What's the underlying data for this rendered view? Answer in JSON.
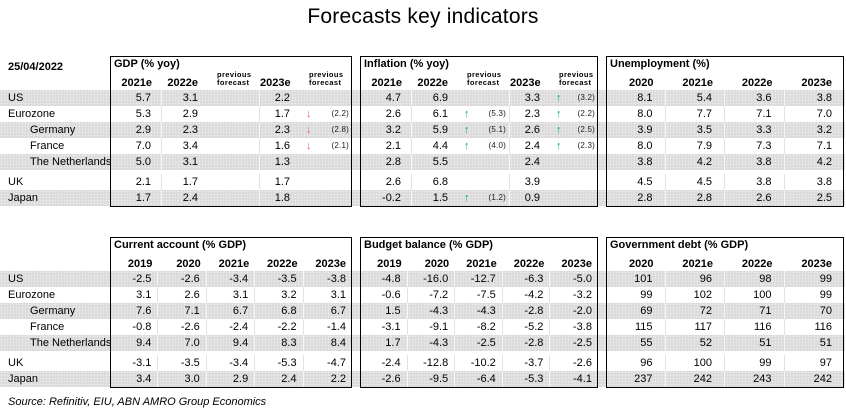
{
  "title": "Forecasts key indicators",
  "date": "25/04/2022",
  "source": "Source: Refinitiv, EIU, ABN AMRO Group Economics",
  "icons": {
    "up": "↑",
    "down": "↓"
  },
  "colors": {
    "up_arrow": "#00a39b",
    "down_arrow": "#e8625a",
    "stripe": "#dbdbdb"
  },
  "countries": [
    {
      "label": "US",
      "indent": false
    },
    {
      "label": "Eurozone",
      "indent": false
    },
    {
      "label": "Germany",
      "indent": true
    },
    {
      "label": "France",
      "indent": true
    },
    {
      "label": "The Netherlands",
      "indent": true
    },
    {
      "label": "UK",
      "indent": false
    },
    {
      "label": "Japan",
      "indent": false
    }
  ],
  "groups": [
    {
      "panels": [
        "gdp",
        "inflation",
        "unemployment"
      ]
    },
    {
      "panels": [
        "current_account",
        "budget_balance",
        "government_debt"
      ]
    }
  ],
  "panels": {
    "gdp": {
      "title": "GDP (% yoy)",
      "layout": "cols-5f",
      "columns": [
        "2021e",
        "2022e",
        "previous forecast",
        "2023e",
        "previous forecast"
      ],
      "rows": [
        [
          "5.7",
          "3.1",
          null,
          "2.2",
          null
        ],
        [
          "5.3",
          "2.9",
          null,
          "1.7",
          {
            "arrow": "down",
            "v": "(2.2)"
          }
        ],
        [
          "2.9",
          "2.3",
          null,
          "2.3",
          {
            "arrow": "down",
            "v": "(2.8)"
          }
        ],
        [
          "7.0",
          "3.4",
          null,
          "1.6",
          {
            "arrow": "down",
            "v": "(2.1)"
          }
        ],
        [
          "5.0",
          "3.1",
          null,
          "1.3",
          null
        ],
        [
          "2.1",
          "1.7",
          null,
          "1.7",
          null
        ],
        [
          "1.7",
          "2.4",
          null,
          "1.8",
          null
        ]
      ]
    },
    "inflation": {
      "title": "Inflation (% yoy)",
      "layout": "cols-5f",
      "columns": [
        "2021e",
        "2022e",
        "previous forecast",
        "2023e",
        "previous forecast"
      ],
      "rows": [
        [
          "4.7",
          "6.9",
          null,
          "3.3",
          {
            "arrow": "up",
            "v": "(3.2)"
          }
        ],
        [
          "2.6",
          "6.1",
          {
            "arrow": "up",
            "v": "(5.3)"
          },
          "2.3",
          {
            "arrow": "up",
            "v": "(2.2)"
          }
        ],
        [
          "3.2",
          "5.9",
          {
            "arrow": "up",
            "v": "(5.1)"
          },
          "2.6",
          {
            "arrow": "up",
            "v": "(2.5)"
          }
        ],
        [
          "2.1",
          "4.4",
          {
            "arrow": "up",
            "v": "(4.0)"
          },
          "2.4",
          {
            "arrow": "up",
            "v": "(2.3)"
          }
        ],
        [
          "2.8",
          "5.5",
          null,
          "2.4",
          null
        ],
        [
          "2.6",
          "6.8",
          null,
          "3.9",
          null
        ],
        [
          "-0.2",
          "1.5",
          {
            "arrow": "up",
            "v": "(1.2)"
          },
          "0.9",
          null
        ]
      ]
    },
    "unemployment": {
      "title": "Unemployment (%)",
      "layout": "cols-4",
      "columns": [
        "2020",
        "2021e",
        "2022e",
        "2023e"
      ],
      "rows": [
        [
          "8.1",
          "5.4",
          "3.6",
          "3.8"
        ],
        [
          "8.0",
          "7.7",
          "7.1",
          "7.0"
        ],
        [
          "3.9",
          "3.5",
          "3.3",
          "3.2"
        ],
        [
          "8.0",
          "7.9",
          "7.3",
          "7.1"
        ],
        [
          "3.8",
          "4.2",
          "3.8",
          "4.2"
        ],
        [
          "4.5",
          "4.5",
          "3.8",
          "3.8"
        ],
        [
          "2.8",
          "2.8",
          "2.6",
          "2.5"
        ]
      ]
    },
    "current_account": {
      "title": "Current account (% GDP)",
      "layout": "cols-5",
      "columns": [
        "2019",
        "2020",
        "2021e",
        "2022e",
        "2023e"
      ],
      "rows": [
        [
          "-2.5",
          "-2.6",
          "-3.4",
          "-3.5",
          "-3.8"
        ],
        [
          "3.1",
          "2.6",
          "3.1",
          "3.2",
          "3.1"
        ],
        [
          "7.6",
          "7.1",
          "6.7",
          "6.8",
          "6.7"
        ],
        [
          "-0.8",
          "-2.6",
          "-2.4",
          "-2.2",
          "-1.4"
        ],
        [
          "9.4",
          "7.0",
          "9.4",
          "8.3",
          "8.4"
        ],
        [
          "-3.1",
          "-3.5",
          "-3.4",
          "-5.3",
          "-4.7"
        ],
        [
          "3.4",
          "3.0",
          "2.9",
          "2.4",
          "2.2"
        ]
      ]
    },
    "budget_balance": {
      "title": "Budget balance (% GDP)",
      "layout": "cols-5",
      "columns": [
        "2019",
        "2020",
        "2021e",
        "2022e",
        "2023e"
      ],
      "rows": [
        [
          "-4.8",
          "-16.0",
          "-12.7",
          "-6.3",
          "-5.0"
        ],
        [
          "-0.6",
          "-7.2",
          "-7.5",
          "-4.2",
          "-3.2"
        ],
        [
          "1.5",
          "-4.3",
          "-4.3",
          "-2.8",
          "-2.0"
        ],
        [
          "-3.1",
          "-9.1",
          "-8.2",
          "-5.2",
          "-3.8"
        ],
        [
          "1.7",
          "-4.3",
          "-2.5",
          "-2.8",
          "-2.5"
        ],
        [
          "-2.4",
          "-12.8",
          "-10.2",
          "-3.7",
          "-2.6"
        ],
        [
          "-2.6",
          "-9.5",
          "-6.4",
          "-5.3",
          "-4.1"
        ]
      ]
    },
    "government_debt": {
      "title": "Government debt (% GDP)",
      "layout": "cols-4",
      "columns": [
        "2020",
        "2021e",
        "2022e",
        "2023e"
      ],
      "rows": [
        [
          "101",
          "96",
          "98",
          "99"
        ],
        [
          "99",
          "102",
          "100",
          "99"
        ],
        [
          "69",
          "72",
          "71",
          "70"
        ],
        [
          "115",
          "117",
          "116",
          "116"
        ],
        [
          "55",
          "52",
          "51",
          "51"
        ],
        [
          "96",
          "100",
          "99",
          "97"
        ],
        [
          "237",
          "242",
          "243",
          "242"
        ]
      ]
    }
  }
}
